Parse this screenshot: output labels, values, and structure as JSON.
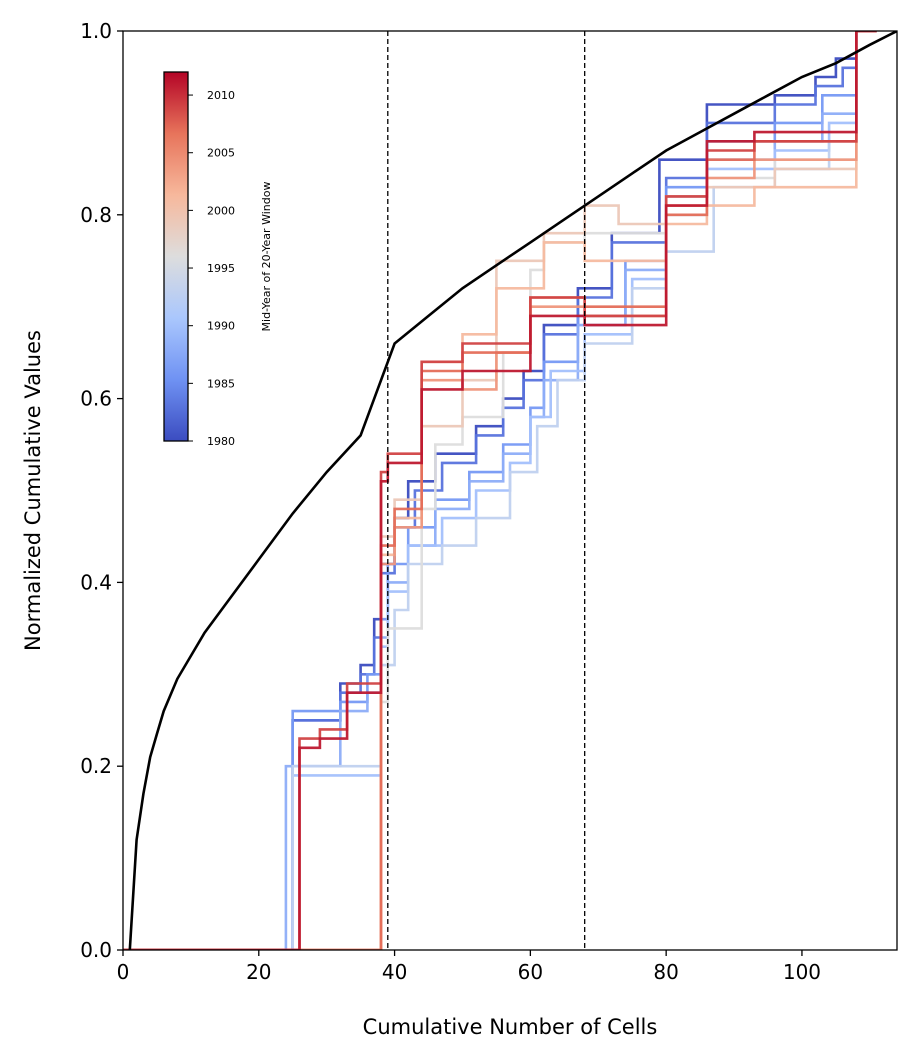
{
  "chart_data": {
    "type": "line",
    "xlabel": "Cumulative Number of Cells",
    "ylabel": "Normalized Cumulative Values",
    "xlim": [
      0,
      114
    ],
    "ylim": [
      0,
      1
    ],
    "xticks": [
      0,
      20,
      40,
      60,
      80,
      100
    ],
    "yticks": [
      0.0,
      0.2,
      0.4,
      0.6,
      0.8,
      1.0
    ],
    "xtick_labels": [
      "0",
      "20",
      "40",
      "60",
      "80",
      "100"
    ],
    "ytick_labels": [
      "0.0",
      "0.2",
      "0.4",
      "0.6",
      "0.8",
      "1.0"
    ],
    "grid": false,
    "vertical_lines": [
      {
        "x": 39,
        "style": "dashed",
        "color": "#000000"
      },
      {
        "x": 68,
        "style": "dashed",
        "color": "#000000"
      }
    ],
    "reference_curve": {
      "color": "#000000",
      "x": [
        1,
        2,
        3,
        4,
        5,
        6,
        8,
        10,
        12,
        15,
        20,
        25,
        30,
        35,
        40,
        45,
        50,
        55,
        60,
        65,
        70,
        75,
        80,
        85,
        90,
        95,
        100,
        105,
        110,
        114
      ],
      "y": [
        0.0,
        0.12,
        0.17,
        0.21,
        0.235,
        0.26,
        0.295,
        0.32,
        0.345,
        0.375,
        0.425,
        0.475,
        0.52,
        0.56,
        0.66,
        0.69,
        0.72,
        0.745,
        0.77,
        0.795,
        0.82,
        0.845,
        0.87,
        0.89,
        0.91,
        0.93,
        0.95,
        0.965,
        0.985,
        1.0
      ]
    },
    "colorbar": {
      "label": "Mid-Year of 20-Year Window",
      "min": 1980,
      "max": 2012,
      "ticks": [
        1980,
        1985,
        1990,
        1995,
        2000,
        2005,
        2010
      ],
      "tick_labels": [
        "1980",
        "1985",
        "1990",
        "1995",
        "2000",
        "2005",
        "2010"
      ],
      "colormap": "coolwarm",
      "colormap_stops": [
        "#3b4cc0",
        "#6f92f3",
        "#aac7fd",
        "#dddddd",
        "#f7b89c",
        "#e7745b",
        "#b40426"
      ]
    },
    "series": [
      {
        "year": 1980,
        "x": [
          0,
          25,
          25,
          32,
          32,
          35,
          35,
          37,
          37,
          38,
          38,
          40,
          40,
          42,
          42,
          46,
          46,
          52,
          52,
          56,
          56,
          59,
          59,
          62,
          62,
          67,
          67,
          72,
          72,
          79,
          79,
          86,
          86,
          96,
          96,
          102,
          102,
          105,
          105,
          108,
          108,
          111
        ],
        "y": [
          0,
          0,
          0.25,
          0.25,
          0.29,
          0.29,
          0.31,
          0.31,
          0.36,
          0.36,
          0.42,
          0.42,
          0.47,
          0.47,
          0.51,
          0.51,
          0.54,
          0.54,
          0.57,
          0.57,
          0.6,
          0.6,
          0.63,
          0.63,
          0.68,
          0.68,
          0.72,
          0.72,
          0.78,
          0.78,
          0.86,
          0.86,
          0.92,
          0.92,
          0.93,
          0.93,
          0.95,
          0.95,
          0.97,
          0.97,
          1.0,
          1.0
        ]
      },
      {
        "year": 1983,
        "x": [
          0,
          25,
          25,
          32,
          32,
          35,
          35,
          37,
          37,
          38,
          38,
          40,
          40,
          43,
          43,
          47,
          47,
          52,
          52,
          56,
          56,
          59,
          59,
          62,
          62,
          67,
          67,
          72,
          72,
          80,
          80,
          86,
          86,
          96,
          96,
          102,
          102,
          106,
          106,
          108,
          108,
          111
        ],
        "y": [
          0,
          0,
          0.25,
          0.25,
          0.28,
          0.28,
          0.3,
          0.3,
          0.34,
          0.34,
          0.41,
          0.41,
          0.46,
          0.46,
          0.5,
          0.5,
          0.53,
          0.53,
          0.56,
          0.56,
          0.59,
          0.59,
          0.62,
          0.62,
          0.67,
          0.67,
          0.71,
          0.71,
          0.77,
          0.77,
          0.84,
          0.84,
          0.9,
          0.9,
          0.92,
          0.92,
          0.94,
          0.94,
          0.96,
          0.96,
          1.0,
          1.0
        ]
      },
      {
        "year": 1986,
        "x": [
          0,
          25,
          25,
          32,
          32,
          36,
          36,
          38,
          38,
          39,
          39,
          42,
          42,
          46,
          46,
          51,
          51,
          56,
          56,
          60,
          60,
          62,
          62,
          67,
          67,
          74,
          74,
          80,
          80,
          86,
          86,
          96,
          96,
          103,
          103,
          108,
          108,
          111
        ],
        "y": [
          0,
          0,
          0.26,
          0.26,
          0.27,
          0.27,
          0.3,
          0.3,
          0.36,
          0.36,
          0.42,
          0.42,
          0.46,
          0.46,
          0.49,
          0.49,
          0.52,
          0.52,
          0.55,
          0.55,
          0.59,
          0.59,
          0.64,
          0.64,
          0.69,
          0.69,
          0.75,
          0.75,
          0.83,
          0.83,
          0.88,
          0.88,
          0.9,
          0.9,
          0.93,
          0.93,
          1.0,
          1.0
        ]
      },
      {
        "year": 1988,
        "x": [
          0,
          24,
          24,
          32,
          32,
          36,
          36,
          38,
          38,
          39,
          39,
          42,
          42,
          46,
          46,
          51,
          51,
          56,
          56,
          60,
          60,
          62,
          62,
          67,
          67,
          74,
          74,
          80,
          80,
          86,
          86,
          96,
          96,
          103,
          103,
          108,
          108,
          111
        ],
        "y": [
          0,
          0,
          0.2,
          0.2,
          0.26,
          0.26,
          0.28,
          0.28,
          0.34,
          0.34,
          0.4,
          0.4,
          0.44,
          0.44,
          0.48,
          0.48,
          0.51,
          0.51,
          0.54,
          0.54,
          0.58,
          0.58,
          0.62,
          0.62,
          0.68,
          0.68,
          0.74,
          0.74,
          0.82,
          0.82,
          0.86,
          0.86,
          0.88,
          0.88,
          0.91,
          0.91,
          1.0,
          1.0
        ]
      },
      {
        "year": 1990,
        "x": [
          0,
          25,
          25,
          38,
          38,
          39,
          39,
          42,
          42,
          47,
          47,
          52,
          52,
          57,
          57,
          60,
          60,
          63,
          63,
          68,
          68,
          75,
          75,
          80,
          80,
          86,
          86,
          96,
          96,
          104,
          104,
          108,
          108,
          111
        ],
        "y": [
          0,
          0,
          0.19,
          0.19,
          0.33,
          0.33,
          0.39,
          0.39,
          0.44,
          0.44,
          0.47,
          0.47,
          0.5,
          0.5,
          0.53,
          0.53,
          0.58,
          0.58,
          0.63,
          0.63,
          0.67,
          0.67,
          0.73,
          0.73,
          0.8,
          0.8,
          0.85,
          0.85,
          0.87,
          0.87,
          0.9,
          0.9,
          1.0,
          1.0
        ]
      },
      {
        "year": 1993,
        "x": [
          0,
          25,
          25,
          38,
          38,
          40,
          40,
          42,
          42,
          47,
          47,
          52,
          52,
          57,
          57,
          61,
          61,
          64,
          64,
          68,
          68,
          75,
          75,
          80,
          80,
          87,
          87,
          96,
          96,
          104,
          104,
          108,
          108,
          111
        ],
        "y": [
          0,
          0,
          0.2,
          0.2,
          0.31,
          0.31,
          0.37,
          0.37,
          0.42,
          0.42,
          0.44,
          0.44,
          0.47,
          0.47,
          0.52,
          0.52,
          0.57,
          0.57,
          0.62,
          0.62,
          0.66,
          0.66,
          0.72,
          0.72,
          0.76,
          0.76,
          0.83,
          0.83,
          0.85,
          0.85,
          0.88,
          0.88,
          1.0,
          1.0
        ]
      },
      {
        "year": 1996,
        "x": [
          0,
          38,
          38,
          39,
          39,
          44,
          44,
          46,
          46,
          50,
          50,
          56,
          56,
          60,
          60,
          62,
          62,
          68,
          68,
          80,
          80,
          86,
          86,
          96,
          96,
          108,
          108,
          111
        ],
        "y": [
          0,
          0,
          0.27,
          0.27,
          0.35,
          0.35,
          0.48,
          0.48,
          0.55,
          0.55,
          0.58,
          0.58,
          0.65,
          0.65,
          0.74,
          0.74,
          0.77,
          0.77,
          0.78,
          0.78,
          0.8,
          0.8,
          0.84,
          0.84,
          0.86,
          0.86,
          1.0,
          1.0
        ]
      },
      {
        "year": 1999,
        "x": [
          0,
          38,
          38,
          40,
          40,
          44,
          44,
          50,
          50,
          55,
          55,
          62,
          62,
          68,
          68,
          73,
          73,
          80,
          80,
          86,
          86,
          96,
          96,
          108,
          108,
          111
        ],
        "y": [
          0,
          0,
          0.45,
          0.45,
          0.49,
          0.49,
          0.57,
          0.57,
          0.62,
          0.62,
          0.75,
          0.75,
          0.78,
          0.78,
          0.81,
          0.81,
          0.79,
          0.79,
          0.82,
          0.82,
          0.83,
          0.83,
          0.85,
          0.85,
          1.0,
          1.0
        ]
      },
      {
        "year": 2001,
        "x": [
          0,
          38,
          38,
          40,
          40,
          44,
          44,
          50,
          50,
          55,
          55,
          62,
          62,
          68,
          68,
          80,
          80,
          86,
          86,
          93,
          93,
          108,
          108,
          111
        ],
        "y": [
          0,
          0,
          0.43,
          0.43,
          0.47,
          0.47,
          0.64,
          0.64,
          0.67,
          0.67,
          0.72,
          0.72,
          0.77,
          0.77,
          0.75,
          0.75,
          0.79,
          0.79,
          0.81,
          0.81,
          0.83,
          0.83,
          1.0,
          1.0
        ]
      },
      {
        "year": 2004,
        "x": [
          0,
          38,
          38,
          40,
          40,
          44,
          44,
          50,
          50,
          55,
          55,
          60,
          60,
          68,
          68,
          80,
          80,
          86,
          86,
          93,
          93,
          108,
          108,
          111
        ],
        "y": [
          0,
          0,
          0.42,
          0.42,
          0.46,
          0.46,
          0.62,
          0.62,
          0.61,
          0.61,
          0.65,
          0.65,
          0.7,
          0.7,
          0.69,
          0.69,
          0.81,
          0.81,
          0.84,
          0.84,
          0.86,
          0.86,
          1.0,
          1.0
        ]
      },
      {
        "year": 2007,
        "x": [
          0,
          38,
          38,
          40,
          40,
          44,
          44,
          50,
          50,
          60,
          60,
          68,
          68,
          80,
          80,
          86,
          86,
          93,
          93,
          108,
          108,
          111
        ],
        "y": [
          0,
          0,
          0.44,
          0.44,
          0.48,
          0.48,
          0.63,
          0.63,
          0.65,
          0.65,
          0.71,
          0.71,
          0.7,
          0.7,
          0.8,
          0.8,
          0.86,
          0.86,
          0.88,
          0.88,
          1.0,
          1.0
        ]
      },
      {
        "year": 2009,
        "x": [
          0,
          26,
          26,
          29,
          29,
          33,
          33,
          38,
          38,
          39,
          39,
          44,
          44,
          50,
          50,
          60,
          60,
          68,
          68,
          80,
          80,
          86,
          86,
          93,
          93,
          108,
          108,
          111
        ],
        "y": [
          0,
          0,
          0.23,
          0.23,
          0.24,
          0.24,
          0.29,
          0.29,
          0.52,
          0.52,
          0.54,
          0.54,
          0.64,
          0.64,
          0.66,
          0.66,
          0.71,
          0.71,
          0.69,
          0.69,
          0.82,
          0.82,
          0.87,
          0.87,
          0.88,
          0.88,
          1.0,
          1.0
        ]
      },
      {
        "year": 2011,
        "x": [
          0,
          26,
          26,
          29,
          29,
          33,
          33,
          38,
          38,
          39,
          39,
          44,
          44,
          50,
          50,
          60,
          60,
          68,
          68,
          80,
          80,
          86,
          86,
          93,
          93,
          108,
          108,
          111
        ],
        "y": [
          0,
          0,
          0.22,
          0.22,
          0.23,
          0.23,
          0.28,
          0.28,
          0.51,
          0.51,
          0.53,
          0.53,
          0.61,
          0.61,
          0.63,
          0.63,
          0.69,
          0.69,
          0.68,
          0.68,
          0.81,
          0.81,
          0.88,
          0.88,
          0.89,
          0.89,
          1.0,
          1.0
        ]
      }
    ]
  }
}
